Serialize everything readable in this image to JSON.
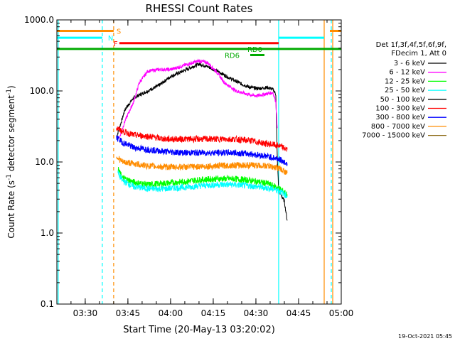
{
  "chart_data": {
    "type": "line",
    "title": "RHESSI Count Rates",
    "xlabel": "Start Time (20-May-13 03:20:02)",
    "ylabel": "Count Rate (s⁻¹ detector segment⁻¹)",
    "ylabel_parts": [
      "Count Rate (s",
      "-1",
      " detector segment",
      "-1",
      ")"
    ],
    "y_scale": "log",
    "ylim": [
      0.1,
      1000.0
    ],
    "xlim": [
      "03:20:02",
      "05:00:00"
    ],
    "x_tick_labels": [
      "03:30",
      "03:45",
      "04:00",
      "04:15",
      "04:30",
      "04:45",
      "05:00"
    ],
    "x_tick_times": [
      "03:30",
      "03:45",
      "04:00",
      "04:15",
      "04:30",
      "04:45",
      "05:00"
    ],
    "y_tick_labels": [
      "0.1",
      "1.0",
      "10.0",
      "100.0",
      "1000.0"
    ],
    "y_tick_values": [
      0.1,
      1.0,
      10.0,
      100.0,
      1000.0
    ],
    "grid": false,
    "legend_position": "right",
    "legend_header": [
      "Det 1f,3f,4f,5f,6f,9f,",
      "FDecim 1, Att 0"
    ],
    "series": [
      {
        "name": "3 - 6 keV",
        "color": "#000000",
        "points": [
          [
            "03:41:00",
            22
          ],
          [
            "03:42:00",
            30
          ],
          [
            "03:44:00",
            55
          ],
          [
            "03:47:00",
            80
          ],
          [
            "03:52:00",
            100
          ],
          [
            "03:56:00",
            120
          ],
          [
            "04:00:00",
            160
          ],
          [
            "04:05:00",
            195
          ],
          [
            "04:10:00",
            240
          ],
          [
            "04:13:00",
            220
          ],
          [
            "04:17:00",
            185
          ],
          [
            "04:21:00",
            150
          ],
          [
            "04:25:00",
            125
          ],
          [
            "04:28:00",
            112
          ],
          [
            "04:31:00",
            108
          ],
          [
            "04:34:00",
            112
          ],
          [
            "04:36:00",
            105
          ],
          [
            "04:37:00",
            90
          ],
          [
            "04:37:30",
            12
          ],
          [
            "04:38:00",
            4
          ],
          [
            "04:40:00",
            2.8
          ],
          [
            "04:41:00",
            1.5
          ]
        ]
      },
      {
        "name": "6 - 12 keV",
        "color": "#ff00ff",
        "points": [
          [
            "03:42:00",
            22
          ],
          [
            "03:44:00",
            38
          ],
          [
            "03:47:00",
            70
          ],
          [
            "03:49:00",
            130
          ],
          [
            "03:52:00",
            190
          ],
          [
            "03:56:00",
            200
          ],
          [
            "04:00:00",
            200
          ],
          [
            "04:05:00",
            230
          ],
          [
            "04:10:00",
            265
          ],
          [
            "04:13:00",
            250
          ],
          [
            "04:16:00",
            190
          ],
          [
            "04:19:00",
            130
          ],
          [
            "04:23:00",
            100
          ],
          [
            "04:27:00",
            90
          ],
          [
            "04:30:00",
            85
          ],
          [
            "04:33:00",
            90
          ],
          [
            "04:36:00",
            95
          ],
          [
            "04:37:00",
            70
          ],
          [
            "04:37:30",
            30
          ]
        ]
      },
      {
        "name": "12 - 25 keV",
        "color": "#00ff00",
        "points": [
          [
            "03:41:30",
            8
          ],
          [
            "03:43:00",
            6
          ],
          [
            "03:47:00",
            5.2
          ],
          [
            "03:52:00",
            4.8
          ],
          [
            "03:58:00",
            5.0
          ],
          [
            "04:05:00",
            5.3
          ],
          [
            "04:10:00",
            5.6
          ],
          [
            "04:16:00",
            5.8
          ],
          [
            "04:22:00",
            5.8
          ],
          [
            "04:28:00",
            5.5
          ],
          [
            "04:34:00",
            5.0
          ],
          [
            "04:38:00",
            4.3
          ],
          [
            "04:41:00",
            3.5
          ]
        ]
      },
      {
        "name": "25 - 50 keV",
        "color": "#00ffff",
        "points": [
          [
            "03:41:30",
            7
          ],
          [
            "03:43:00",
            5.5
          ],
          [
            "03:47:00",
            4.5
          ],
          [
            "03:52:00",
            4.2
          ],
          [
            "03:58:00",
            4.2
          ],
          [
            "04:05:00",
            4.4
          ],
          [
            "04:10:00",
            4.6
          ],
          [
            "04:16:00",
            4.8
          ],
          [
            "04:22:00",
            4.8
          ],
          [
            "04:28:00",
            4.6
          ],
          [
            "04:34:00",
            4.3
          ],
          [
            "04:38:00",
            4.0
          ],
          [
            "04:41:00",
            3.3
          ]
        ]
      },
      {
        "name": "50 - 100 keV",
        "color": "#000000",
        "points": []
      },
      {
        "name": "100 - 300 keV",
        "color": "#ff0000",
        "points": [
          [
            "03:41:00",
            30
          ],
          [
            "03:43:00",
            27
          ],
          [
            "03:47:00",
            24
          ],
          [
            "03:52:00",
            23
          ],
          [
            "03:58:00",
            21
          ],
          [
            "04:05:00",
            21
          ],
          [
            "04:10:00",
            21
          ],
          [
            "04:16:00",
            21
          ],
          [
            "04:22:00",
            21
          ],
          [
            "04:28:00",
            20
          ],
          [
            "04:34:00",
            18
          ],
          [
            "04:38:00",
            17
          ],
          [
            "04:41:00",
            15
          ]
        ]
      },
      {
        "name": "300 - 800 keV",
        "color": "#0000ff",
        "points": [
          [
            "03:41:00",
            22
          ],
          [
            "03:43:00",
            19
          ],
          [
            "03:47:00",
            16
          ],
          [
            "03:52:00",
            15
          ],
          [
            "03:58:00",
            14
          ],
          [
            "04:05:00",
            13.5
          ],
          [
            "04:10:00",
            13.5
          ],
          [
            "04:16:00",
            13.5
          ],
          [
            "04:22:00",
            13.5
          ],
          [
            "04:28:00",
            13
          ],
          [
            "04:34:00",
            12
          ],
          [
            "04:38:00",
            11
          ],
          [
            "04:41:00",
            9.5
          ]
        ]
      },
      {
        "name": "800 - 7000 keV",
        "color": "#ff8c00",
        "points": [
          [
            "03:41:00",
            12
          ],
          [
            "03:43:00",
            10
          ],
          [
            "03:47:00",
            9.5
          ],
          [
            "03:52:00",
            8.8
          ],
          [
            "03:58:00",
            8.5
          ],
          [
            "04:05:00",
            8.5
          ],
          [
            "04:10:00",
            8.6
          ],
          [
            "04:16:00",
            8.8
          ],
          [
            "04:22:00",
            9.0
          ],
          [
            "04:28:00",
            9.0
          ],
          [
            "04:34:00",
            8.8
          ],
          [
            "04:38:00",
            8.2
          ],
          [
            "04:41:00",
            7.0
          ]
        ]
      },
      {
        "name": "7000 - 15000 keV",
        "color": "#8b6914",
        "points": []
      }
    ],
    "flags": [
      {
        "label": "S",
        "color": "#ff8c00",
        "y": 700,
        "segments": [
          [
            "03:20:02",
            "03:40:00"
          ],
          [
            "04:56:00",
            "05:00:00"
          ]
        ],
        "label_time": "03:41:00"
      },
      {
        "label": "N",
        "color": "#00ffff",
        "y": 560,
        "segments": [
          [
            "03:20:02",
            "03:36:00"
          ],
          [
            "04:38:00",
            "04:54:00"
          ]
        ],
        "label_time": "03:38:00"
      },
      {
        "label": "F",
        "color": "#ff0000",
        "y": 470,
        "segments": [
          [
            "03:42:00",
            "04:38:00"
          ]
        ],
        "label_time": "03:40:00"
      },
      {
        "label": "RD0",
        "color": "#00aa00",
        "y": 390,
        "segments": [
          [
            "03:20:02",
            "05:00:00"
          ]
        ],
        "label_time": "04:27:00"
      },
      {
        "label": "RD6",
        "color": "#00aa00",
        "y": 320,
        "segments": [
          [
            "04:28:00",
            "04:33:00"
          ]
        ],
        "label_time": "04:19:00"
      }
    ],
    "vlines": [
      {
        "time": "03:20:30",
        "color": "#00ffff",
        "style": "solid"
      },
      {
        "time": "03:36:00",
        "color": "#00ffff",
        "style": "dashed"
      },
      {
        "time": "03:40:00",
        "color": "#ff8c00",
        "style": "dashed"
      },
      {
        "time": "04:38:00",
        "color": "#00ffff",
        "style": "solid"
      },
      {
        "time": "04:54:00",
        "color": "#ff8c00",
        "style": "solid"
      },
      {
        "time": "04:56:30",
        "color": "#00ffff",
        "style": "dashed"
      },
      {
        "time": "04:57:00",
        "color": "#ff8c00",
        "style": "solid"
      }
    ],
    "footer": "19-Oct-2021 05:45"
  }
}
